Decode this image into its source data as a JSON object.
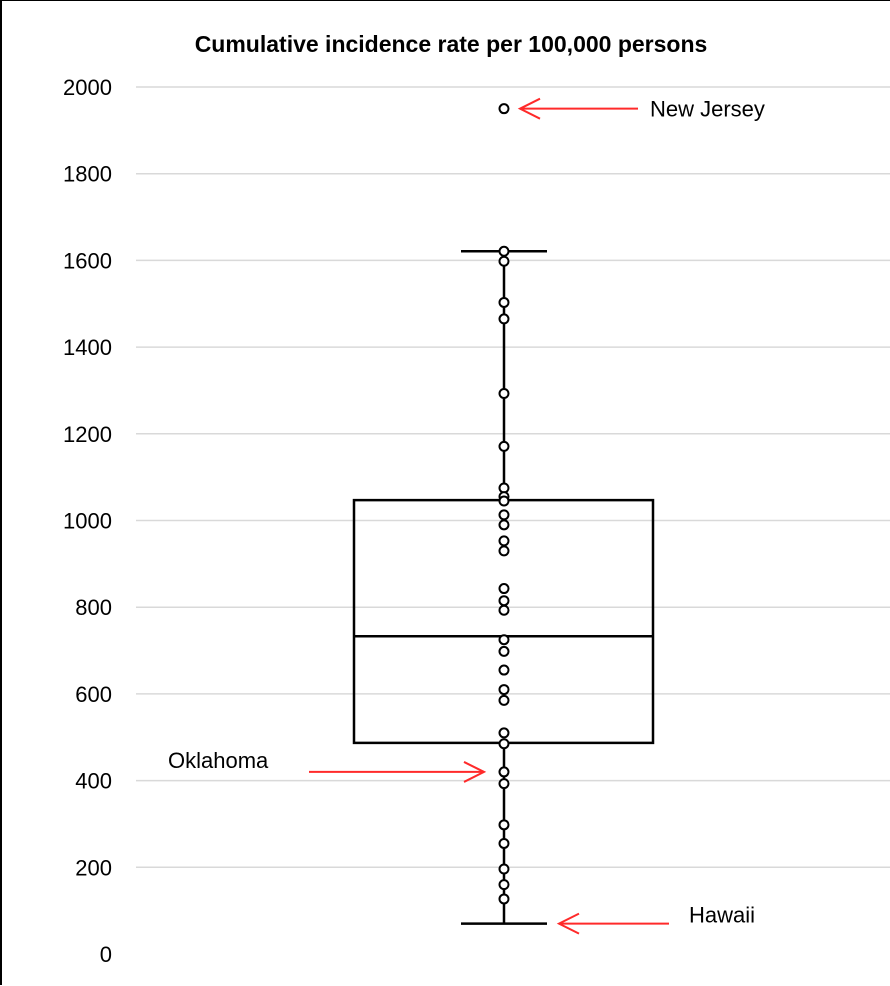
{
  "chart_data": {
    "type": "box",
    "title": "Cumulative incidence rate per 100,000 persons",
    "xlabel": "",
    "ylabel": "",
    "ylim": [
      0,
      2000
    ],
    "yticks": [
      0,
      200,
      400,
      600,
      800,
      1000,
      1200,
      1400,
      1600,
      1800,
      2000
    ],
    "grid": true,
    "box": {
      "min": 70,
      "q1": 487,
      "median": 733,
      "q3": 1047,
      "max": 1621
    },
    "points": [
      1950,
      1621,
      1598,
      1503,
      1465,
      1293,
      1171,
      1075,
      1055,
      1045,
      1013,
      990,
      953,
      930,
      843,
      815,
      793,
      725,
      698,
      655,
      610,
      585,
      510,
      485,
      420,
      393,
      298,
      255,
      196,
      160,
      127
    ],
    "annotations": [
      {
        "label": "New Jersey",
        "value": 1950,
        "side": "right"
      },
      {
        "label": "Oklahoma",
        "value": 420,
        "side": "left"
      },
      {
        "label": "Hawaii",
        "value": 70,
        "side": "right"
      }
    ],
    "colors": {
      "arrow": "#ff2a2a",
      "grid": "#d9d9d9"
    }
  }
}
